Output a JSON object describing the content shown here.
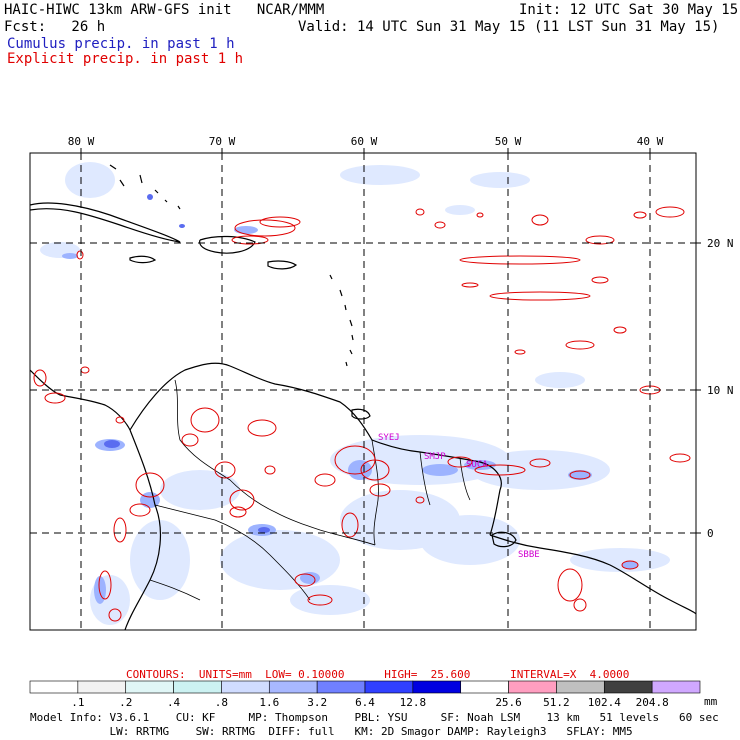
{
  "header": {
    "title": "HAIC-HIWC 13km ARW-GFS init   NCAR/MMM",
    "init": "Init: 12 UTC Sat 30 May 15",
    "fcst": "Fcst:   26 h",
    "valid": "Valid: 14 UTC Sun 31 May 15 (11 LST Sun 31 May 15)",
    "legend_cumulus": "Cumulus precip. in past 1 h",
    "legend_explicit": "Explicit precip. in past 1 h"
  },
  "map": {
    "lon_labels": [
      "80 W",
      "70 W",
      "60 W",
      "50 W",
      "40 W"
    ],
    "lat_labels": [
      "20 N",
      "10 N",
      "0"
    ],
    "stations": [
      "SYEJ",
      "SMJP",
      "SOCA",
      "SBBE"
    ],
    "colors": {
      "coast": "#000000",
      "explicit": "#e00000",
      "cumulus_light": "#dfe9ff",
      "cumulus_mid": "#9db3ff",
      "cumulus_dark": "#5a6cf0",
      "station": "#d000d0"
    }
  },
  "contours": {
    "label": "CONTOURS:  UNITS=mm  LOW= 0.10000      HIGH=  25.600      INTERVAL=X  4.0000"
  },
  "colorbar": {
    "labels": [
      ".1",
      ".2",
      ".4",
      ".8",
      "1.6",
      "3.2",
      "6.4",
      "12.8",
      "25.6",
      "51.2",
      "102.4",
      "204.8"
    ],
    "colors": [
      "#ffffff",
      "#f2f2f2",
      "#e0f6f6",
      "#ccf2f2",
      "#d0dcff",
      "#a8b8ff",
      "#7080ff",
      "#3040ff",
      "#0000e0",
      "#ffffff",
      "#ff9ec0",
      "#c0c0c0",
      "#404040",
      "#d0a8ff"
    ],
    "unit": "mm"
  },
  "model_info": {
    "line1": "Model Info: V3.6.1    CU: KF     MP: Thompson    PBL: YSU     SF: Noah LSM    13 km   51 levels   60 sec",
    "line2": "            LW: RRTMG    SW: RRTMG  DIFF: full   KM: 2D Smagor DAMP: Rayleigh3   SFLAY: MM5"
  }
}
